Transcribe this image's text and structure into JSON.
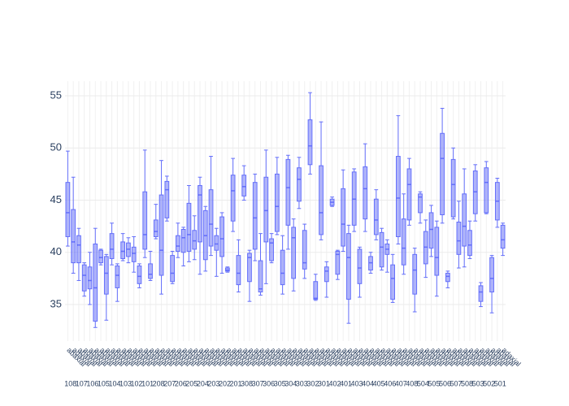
{
  "chart_data": {
    "type": "box",
    "groups": [
      "108",
      "107",
      "106",
      "105",
      "104",
      "103",
      "102",
      "101",
      "208",
      "207",
      "206",
      "205",
      "204",
      "203",
      "202",
      "201",
      "308",
      "307",
      "306",
      "305",
      "304",
      "303",
      "302",
      "301",
      "402",
      "401",
      "403",
      "404",
      "405",
      "406",
      "407",
      "408",
      "504",
      "505",
      "506",
      "507",
      "508",
      "503",
      "502",
      "501"
    ],
    "categories": [
      "abaxial",
      "adaxial",
      "abaxial",
      "adaxial",
      "abaxial",
      "adaxial",
      "abaxial",
      "adaxial",
      "abaxial",
      "adaxial",
      "abaxial",
      "adaxial",
      "abaxial",
      "adaxial",
      "abaxial",
      "adaxial",
      "abaxial",
      "adaxial",
      "abaxial",
      "adaxial",
      "abaxial",
      "adaxial",
      "abaxial",
      "adaxial",
      "abaxial",
      "adaxial",
      "abaxial",
      "adaxial",
      "abaxial",
      "adaxial",
      "abaxial",
      "adaxial",
      "abaxial",
      "adaxial",
      "abaxial",
      "adaxial",
      "abaxial",
      "adaxial",
      "abaxial",
      "adaxial",
      "abaxial",
      "adaxial",
      "abaxial",
      "adaxial",
      "abaxial",
      "adaxial",
      "abaxial",
      "adaxial",
      "abaxial",
      "adaxial",
      "abaxial",
      "adaxial",
      "abaxial",
      "adaxial",
      "abaxial",
      "adaxial",
      "abaxial",
      "adaxial",
      "abaxial",
      "adaxial",
      "abaxial",
      "adaxial",
      "abaxial",
      "adaxial",
      "abaxial",
      "adaxial",
      "abaxial",
      "adaxial",
      "abaxial",
      "adaxial",
      "abaxial",
      "adaxial",
      "abaxial",
      "adaxial",
      "abaxial",
      "adaxial",
      "abaxial",
      "adaxial",
      "abaxial",
      "adaxial"
    ],
    "series": [
      {
        "color": "#636efa",
        "min": [
          40.6,
          38,
          37.3,
          35.8,
          35,
          32.8,
          38.8,
          33.5,
          38.8,
          35.3,
          39.2,
          39,
          38.1,
          36.6,
          39.5,
          37.3,
          41.3,
          36,
          43,
          37,
          39.5,
          38.7,
          39.1,
          39.3,
          37.9,
          38.2,
          39.7,
          37.7,
          38,
          38.1,
          42,
          36.2,
          45,
          35.3,
          39.2,
          35.9,
          37,
          39,
          41.7,
          36,
          40.3,
          36.3,
          44.2,
          37.5,
          47.5,
          35.4,
          41.2,
          35.7,
          44.4,
          37.4,
          40.1,
          33.2,
          42,
          35.7,
          42,
          38,
          41.2,
          38.3,
          38.1,
          35.2,
          40.8,
          37.9,
          42.6,
          34.3,
          42.8,
          37.6,
          39.6,
          35.8,
          42.8,
          36.6,
          43.2,
          38.5,
          38.6,
          39.4,
          43,
          34.8,
          43.7,
          34.2,
          42.4,
          39.7
        ],
        "q1": [
          41.5,
          39,
          39,
          36.3,
          36.5,
          33.4,
          39,
          36,
          39.4,
          36.6,
          39.4,
          39.6,
          39.1,
          37,
          40.3,
          37.5,
          41.5,
          37.8,
          43.3,
          37.2,
          40.1,
          40,
          40.1,
          40.3,
          41,
          39.3,
          40.6,
          40.2,
          39.6,
          38.2,
          43,
          36.9,
          45.4,
          37.2,
          40.3,
          36.2,
          41,
          39.2,
          42,
          36.9,
          42.6,
          37.5,
          44.9,
          38.4,
          48.4,
          35.5,
          41.7,
          37.2,
          44.5,
          37.9,
          40.6,
          35.5,
          42.6,
          37,
          43.2,
          38.3,
          41.7,
          38.6,
          39.8,
          35.5,
          41.5,
          38.8,
          43.1,
          36,
          43.8,
          38.9,
          40.4,
          37.8,
          43.6,
          37.2,
          43.4,
          39.8,
          40.6,
          39.7,
          43.7,
          35.3,
          43.8,
          36.2,
          43.1,
          40.4
        ],
        "median": [
          43.8,
          41,
          40.7,
          37.8,
          37.3,
          36.6,
          39.5,
          38,
          40.3,
          37.8,
          40.1,
          40.3,
          39.9,
          37.7,
          41.7,
          37.9,
          42,
          40.2,
          46,
          38,
          40.6,
          41.4,
          41.7,
          41.1,
          45.5,
          41.6,
          42.7,
          40.8,
          41.3,
          38.3,
          45.9,
          38,
          46.3,
          39.5,
          43.3,
          36.5,
          44,
          40.9,
          44.4,
          38,
          46.2,
          41.4,
          47,
          39,
          50.2,
          35.6,
          43.8,
          38.2,
          44.8,
          39.8,
          42.7,
          39.5,
          45.1,
          38.5,
          46.1,
          39,
          43.1,
          40.5,
          40.3,
          37.5,
          45.2,
          40.4,
          46.5,
          38.3,
          45.3,
          40.5,
          42.2,
          39.5,
          49,
          37.7,
          46.5,
          41.1,
          42.5,
          40.7,
          45.8,
          36.2,
          46.7,
          37.5,
          44.9,
          41.2
        ],
        "q3": [
          46.7,
          44.1,
          41.6,
          38.8,
          38.6,
          40.8,
          40.2,
          39.6,
          41.8,
          38.7,
          41,
          40.9,
          40.5,
          38.7,
          45.8,
          38.9,
          43.1,
          45.5,
          46.8,
          39.7,
          41.6,
          42.2,
          44.7,
          42.1,
          46.4,
          44,
          46,
          41.6,
          43.4,
          38.5,
          47.4,
          39.7,
          47.4,
          39.9,
          46.7,
          39.2,
          47.2,
          41.3,
          47.5,
          40.2,
          48.9,
          42.4,
          48.1,
          42.1,
          52.7,
          37.2,
          48.3,
          38.6,
          45.1,
          40.1,
          46.1,
          41.8,
          47.7,
          40.3,
          48.2,
          39.6,
          45.1,
          41.9,
          40.8,
          38.8,
          49.2,
          43.2,
          48,
          39.8,
          45.6,
          42,
          43.8,
          42.4,
          51.4,
          38,
          48.9,
          42.9,
          45.6,
          42.1,
          47.8,
          36.8,
          48.1,
          39.5,
          46.7,
          42.6
        ],
        "max": [
          49.7,
          47.2,
          42.3,
          39,
          40,
          42.3,
          40.3,
          39.8,
          42.8,
          38.9,
          41.8,
          41.4,
          41.5,
          38.9,
          49.8,
          40.1,
          44.6,
          48.8,
          47.3,
          40.1,
          42.8,
          42.4,
          46.4,
          43.5,
          47.2,
          44.4,
          49.2,
          42.3,
          43.8,
          38.6,
          49,
          41.2,
          48.3,
          40.2,
          47.5,
          41.8,
          49.8,
          41.8,
          49.1,
          41.6,
          49.3,
          43.2,
          49.1,
          42.7,
          55.3,
          37.9,
          52.5,
          39.1,
          45.3,
          40.2,
          47.9,
          42.6,
          48,
          40.5,
          50.4,
          40,
          46,
          42.3,
          41.2,
          39.8,
          53.1,
          45.6,
          49,
          40.4,
          45.8,
          43.1,
          44.5,
          43,
          53.8,
          38.2,
          50,
          44.9,
          48,
          43,
          48.4,
          37.1,
          48.7,
          39.7,
          47.1,
          42.8
        ]
      }
    ],
    "ylim": [
      31.5,
      56.4
    ],
    "yticks": [
      35,
      40,
      45,
      50,
      55
    ],
    "grid": true
  }
}
